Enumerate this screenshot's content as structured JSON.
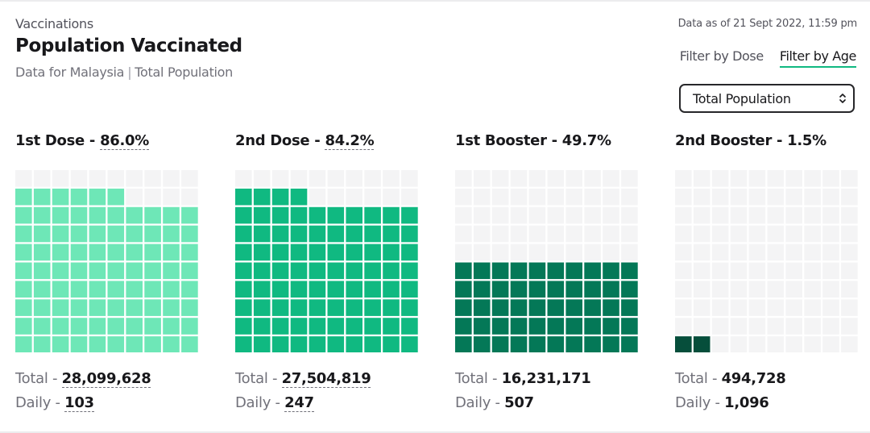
{
  "header": {
    "overline": "Vaccinations",
    "title": "Population Vaccinated",
    "subtitle_left": "Data for Malaysia",
    "subtitle_right": "Total Population",
    "as_of": "Data as of 21 Sept 2022, 11:59 pm"
  },
  "tabs": [
    {
      "label": "Filter by Dose",
      "active": false
    },
    {
      "label": "Filter by Age",
      "active": true
    }
  ],
  "select": {
    "value": "Total Population"
  },
  "labels": {
    "total": "Total - ",
    "daily": "Daily - "
  },
  "colors": {
    "empty": "#f4f4f5",
    "dose1": "#6ee7b7",
    "dose2": "#10b981",
    "booster1": "#047857",
    "booster2": "#064e3b"
  },
  "chart_data": {
    "type": "waffle",
    "grid": [
      10,
      10
    ],
    "series": [
      {
        "name": "1st Dose",
        "percent": 86.0,
        "percent_label": "86.0%",
        "total": "28,099,628",
        "daily": "103",
        "color": "#6ee7b7"
      },
      {
        "name": "2nd Dose",
        "percent": 84.2,
        "percent_label": "84.2%",
        "total": "27,504,819",
        "daily": "247",
        "color": "#10b981"
      },
      {
        "name": "1st Booster",
        "percent": 49.7,
        "percent_label": "49.7%",
        "total": "16,231,171",
        "daily": "507",
        "color": "#047857"
      },
      {
        "name": "2nd Booster",
        "percent": 1.5,
        "percent_label": "1.5%",
        "total": "494,728",
        "daily": "1,096",
        "color": "#064e3b"
      }
    ]
  }
}
